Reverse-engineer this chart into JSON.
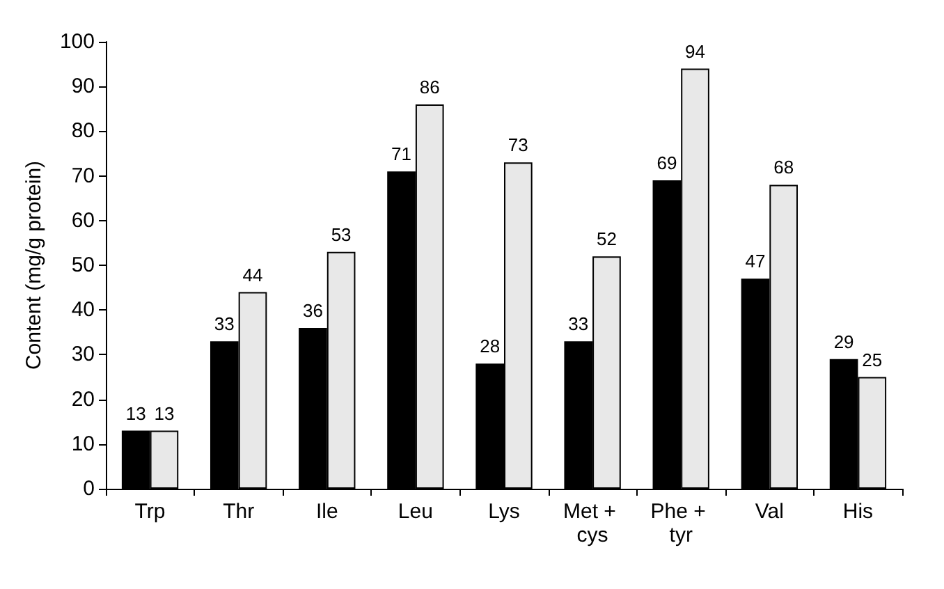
{
  "chart_data": {
    "type": "bar",
    "ylabel": "Content (mg/g protein)",
    "categories": [
      "Trp",
      "Thr",
      "Ile",
      "Leu",
      "Lys",
      "Met + cys",
      "Phe + tyr",
      "Val",
      "His"
    ],
    "series": [
      {
        "color": "#000000",
        "values": [
          13,
          33,
          36,
          71,
          28,
          33,
          69,
          47,
          29
        ]
      },
      {
        "color": "#e8e8e8",
        "values": [
          13,
          44,
          53,
          86,
          73,
          52,
          94,
          68,
          25
        ]
      }
    ],
    "ylim": [
      0,
      100
    ],
    "yticks": [
      0,
      10,
      20,
      30,
      40,
      50,
      60,
      70,
      80,
      90,
      100
    ],
    "grid": false,
    "data_labels": true
  }
}
